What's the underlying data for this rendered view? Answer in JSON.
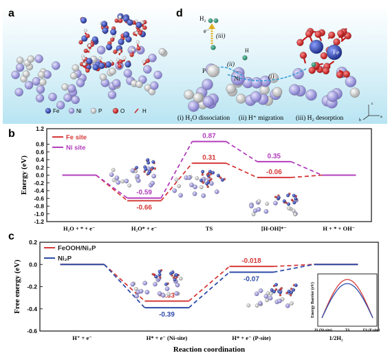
{
  "panels": {
    "a": {
      "letter": "a",
      "legend": [
        {
          "symbol": "Fe",
          "color": "#2a3f9e"
        },
        {
          "symbol": "Ni",
          "color": "#8c86cf"
        },
        {
          "symbol": "P",
          "color": "#d4d4d4"
        },
        {
          "symbol": "O",
          "color": "#d02020"
        },
        {
          "symbol": "H",
          "color": "#f0f0f0"
        }
      ]
    },
    "d": {
      "letter": "d",
      "h2_label": "H₂",
      "e_label": "e⁻",
      "step_iii": "(iii)",
      "step_ii": "(ii)",
      "step_i": "(i)",
      "atom_H": "H",
      "atom_P": "P",
      "atom_Ni": "Ni",
      "atom_Fe": "Fe",
      "caption_i": "(i) H₂O dissociation",
      "caption_ii": "(ii) H⁺ migration",
      "caption_iii": "(iii) H₂ desorption",
      "axis_a": "a",
      "axis_b": "b",
      "axis_c": "c"
    },
    "b": {
      "letter": "b"
    },
    "c": {
      "letter": "c"
    }
  },
  "chart_data": [
    {
      "type": "line",
      "panel": "b",
      "ylabel": "Energy (eV)",
      "ylim": [
        -1.2,
        1.2
      ],
      "yticks": [
        "1.2",
        "0.8",
        "0.6",
        "0.4",
        "0.2",
        "0.0",
        "-0.2",
        "-0.4",
        "-0.6",
        "-0.8",
        "-1.0",
        "-1.2"
      ],
      "categories": [
        "H₂O + * + e⁻",
        "H₂O* + e⁻",
        "TS",
        "[H-OH]*⁻",
        "H + * + OH⁻"
      ],
      "series": [
        {
          "name": "Fe site",
          "color": "#d63838",
          "values": [
            0.0,
            -0.66,
            0.31,
            -0.06,
            0.0
          ],
          "labels": [
            "",
            "-0.66",
            "0.31",
            "-0.06",
            ""
          ]
        },
        {
          "name": "Ni site",
          "color": "#b23dbd",
          "values": [
            0.0,
            -0.59,
            0.87,
            0.35,
            0.0
          ],
          "labels": [
            "",
            "-0.59",
            "0.87",
            "0.35",
            ""
          ]
        }
      ]
    },
    {
      "type": "line",
      "panel": "c",
      "xlabel": "Reaction coordination",
      "ylabel": "Free energy (eV)",
      "ylim": [
        -0.6,
        0.2
      ],
      "yticks": [
        "0.2",
        "0.0",
        "-0.2",
        "-0.4",
        "-0.6"
      ],
      "categories": [
        "H⁺ + e⁻",
        "H* + e⁻ (Ni-site)",
        "H* + e⁻ (P-site)",
        "1/2H₂"
      ],
      "series": [
        {
          "name": "FeOOH/Ni₂P",
          "color": "#d63838",
          "values": [
            0.0,
            -0.33,
            -0.018,
            0.0
          ],
          "labels": [
            "",
            "-0.33",
            "-0.018",
            ""
          ]
        },
        {
          "name": "Ni₂P",
          "color": "#2d4aa8",
          "values": [
            0.0,
            -0.39,
            -0.07,
            0.0
          ],
          "labels": [
            "",
            "-0.39",
            "-0.07",
            ""
          ]
        }
      ],
      "inset": {
        "ylabel": "Energy Barrier (eV)",
        "categories": [
          "IS (Ni-site)",
          "TS",
          "FS (P-site)"
        ]
      }
    }
  ]
}
